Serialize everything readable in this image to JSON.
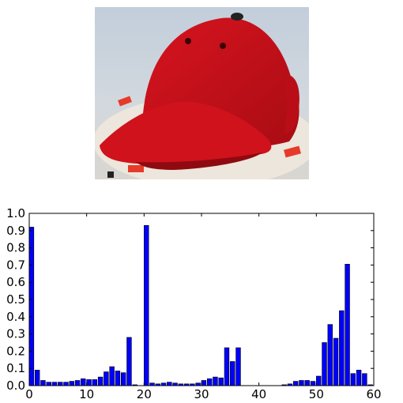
{
  "image": {
    "subject": "red-baseball-cap-photo",
    "colors": {
      "cap": "#c8101a",
      "background": "#c9d3dd",
      "turntable": "#ece6dc"
    }
  },
  "chart_data": {
    "type": "bar",
    "title": "",
    "xlabel": "",
    "ylabel": "",
    "xlim": [
      0,
      60
    ],
    "ylim": [
      0,
      1.0
    ],
    "x_ticks": [
      "0",
      "10",
      "20",
      "30",
      "40",
      "50",
      "60"
    ],
    "y_ticks": [
      "0.0",
      "0.1",
      "0.2",
      "0.3",
      "0.4",
      "0.5",
      "0.6",
      "0.7",
      "0.8",
      "0.9",
      "1.0"
    ],
    "grid": false,
    "legend": "none",
    "bar_color": "#0000ff",
    "x": [
      0,
      1,
      2,
      3,
      4,
      5,
      6,
      7,
      8,
      9,
      10,
      11,
      12,
      13,
      14,
      15,
      16,
      17,
      18,
      19,
      20,
      21,
      22,
      23,
      24,
      25,
      26,
      27,
      28,
      29,
      30,
      31,
      32,
      33,
      34,
      35,
      36,
      37,
      38,
      39,
      40,
      41,
      42,
      43,
      44,
      45,
      46,
      47,
      48,
      49,
      50,
      51,
      52,
      53,
      54,
      55,
      56,
      57,
      58,
      59
    ],
    "values": [
      0.92,
      0.09,
      0.03,
      0.02,
      0.02,
      0.02,
      0.02,
      0.025,
      0.03,
      0.04,
      0.035,
      0.035,
      0.05,
      0.08,
      0.11,
      0.085,
      0.075,
      0.28,
      0.005,
      0.0,
      0.93,
      0.015,
      0.01,
      0.015,
      0.02,
      0.015,
      0.01,
      0.01,
      0.01,
      0.015,
      0.03,
      0.04,
      0.05,
      0.045,
      0.22,
      0.14,
      0.22,
      0.0,
      0.0,
      0.0,
      0.0,
      0.0,
      0.0,
      0.0,
      0.005,
      0.01,
      0.025,
      0.03,
      0.03,
      0.025,
      0.055,
      0.25,
      0.355,
      0.275,
      0.435,
      0.705,
      0.07,
      0.09,
      0.07,
      0.005
    ]
  }
}
